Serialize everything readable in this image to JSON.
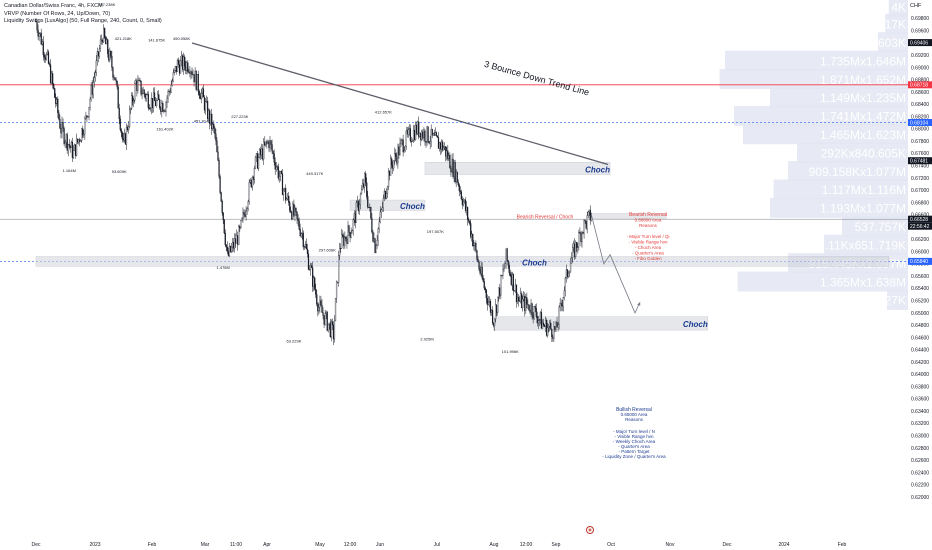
{
  "legend": {
    "line1": "Canadian Dollar/Swiss Franc, 4h, FXCM",
    "line2": "VRVP (Number Of Rows, 24, Up/Down, 70)",
    "line3": "Liquidity Swings [LuxAlgo] (50, Full Range, 240, Count, 0, Small)"
  },
  "currency": "CHF",
  "colors": {
    "up": "#26a69a",
    "down": "#ef5350",
    "candle": "#131722",
    "zone": "#d1d4dc",
    "trendline": "#5d606b",
    "label_blue": "#1a3a8f",
    "label_red": "#e53935",
    "price_badge": "#131722",
    "red_level": "#f23645",
    "blue_dash": "#2962ff",
    "profile_bar": "#e3e6f2",
    "profile_text": "#ffffff",
    "profile_badge": "#2962ff"
  },
  "chart_data": {
    "type": "candlestick",
    "title": "Canadian Dollar/Swiss Franc, 4h, FXCM",
    "y_range": [
      0.613,
      0.701
    ],
    "y_ticks": [
      "0.70000",
      "0.69800",
      "0.69600",
      "0.69400",
      "0.69200",
      "0.69000",
      "0.68800",
      "0.68600",
      "0.68400",
      "0.68200",
      "0.68000",
      "0.67800",
      "0.67600",
      "0.67400",
      "0.67200",
      "0.67000",
      "0.66800",
      "0.66600",
      "0.66400",
      "0.66200",
      "0.66000",
      "0.65800",
      "0.65600",
      "0.65400",
      "0.65200",
      "0.65000",
      "0.64800",
      "0.64600",
      "0.64400",
      "0.64200",
      "0.64000",
      "0.63800",
      "0.63600",
      "0.63400",
      "0.63200",
      "0.63000",
      "0.62800",
      "0.62600",
      "0.62400",
      "0.62200",
      "0.62000"
    ],
    "x_ticks": [
      "Dec",
      "2023",
      "Feb",
      "Mar",
      "11:00",
      "Apr",
      "May",
      "12:00",
      "Jun",
      "Jul",
      "Aug",
      "12:00",
      "Sep",
      "Oct",
      "Nov",
      "Dec",
      "2024",
      "Feb"
    ],
    "price_path": [
      {
        "d": 0,
        "p": 0.6975
      },
      {
        "d": 6,
        "p": 0.6905
      },
      {
        "d": 12,
        "p": 0.68
      },
      {
        "d": 18,
        "p": 0.676
      },
      {
        "d": 24,
        "p": 0.6815
      },
      {
        "d": 32,
        "p": 0.6955
      },
      {
        "d": 38,
        "p": 0.6885
      },
      {
        "d": 42,
        "p": 0.677
      },
      {
        "d": 48,
        "p": 0.6875
      },
      {
        "d": 55,
        "p": 0.6845
      },
      {
        "d": 62,
        "p": 0.684
      },
      {
        "d": 68,
        "p": 0.6905
      },
      {
        "d": 74,
        "p": 0.6905
      },
      {
        "d": 80,
        "p": 0.6852
      },
      {
        "d": 86,
        "p": 0.679
      },
      {
        "d": 92,
        "p": 0.659
      },
      {
        "d": 98,
        "p": 0.663
      },
      {
        "d": 105,
        "p": 0.674
      },
      {
        "d": 112,
        "p": 0.678
      },
      {
        "d": 120,
        "p": 0.669
      },
      {
        "d": 128,
        "p": 0.663
      },
      {
        "d": 136,
        "p": 0.651
      },
      {
        "d": 143,
        "p": 0.6465
      },
      {
        "d": 146,
        "p": 0.661
      },
      {
        "d": 152,
        "p": 0.664
      },
      {
        "d": 158,
        "p": 0.6715
      },
      {
        "d": 163,
        "p": 0.661
      },
      {
        "d": 170,
        "p": 0.6735
      },
      {
        "d": 176,
        "p": 0.6775
      },
      {
        "d": 183,
        "p": 0.68
      },
      {
        "d": 190,
        "p": 0.6785
      },
      {
        "d": 196,
        "p": 0.677
      },
      {
        "d": 202,
        "p": 0.6725
      },
      {
        "d": 208,
        "p": 0.665
      },
      {
        "d": 214,
        "p": 0.656
      },
      {
        "d": 220,
        "p": 0.649
      },
      {
        "d": 226,
        "p": 0.659
      },
      {
        "d": 232,
        "p": 0.652
      },
      {
        "d": 238,
        "p": 0.651
      },
      {
        "d": 244,
        "p": 0.648
      },
      {
        "d": 250,
        "p": 0.647
      },
      {
        "d": 256,
        "p": 0.6575
      },
      {
        "d": 263,
        "p": 0.664
      },
      {
        "d": 267,
        "p": 0.666
      }
    ],
    "projection_path": [
      {
        "d": 267,
        "p": 0.666
      },
      {
        "d": 273,
        "p": 0.658
      },
      {
        "d": 276,
        "p": 0.6595
      },
      {
        "d": 288,
        "p": 0.65
      },
      {
        "d": 290,
        "p": 0.6515
      }
    ],
    "trendline": {
      "from": {
        "d": 75,
        "p": 0.694
      },
      "to": {
        "d": 275,
        "p": 0.6742
      },
      "label": "3 Bounce Down Trend Line"
    },
    "zones": [
      {
        "label": "Choch",
        "top": 0.67455,
        "bottom": 0.67255,
        "from": 187,
        "to": 276
      },
      {
        "label": "Choch",
        "top": 0.6684,
        "bottom": 0.6667,
        "from": 151,
        "to": 187
      },
      {
        "label": "",
        "top": 0.6662,
        "bottom": 0.6654,
        "from": 266,
        "to": 303
      },
      {
        "label": "Choch",
        "top": 0.6592,
        "bottom": 0.6576,
        "from": 0,
        "to": 410
      },
      {
        "label": "Choch",
        "top": 0.6494,
        "bottom": 0.6472,
        "from": 220,
        "to": 323
      }
    ],
    "zone_label_y": {
      "0": 0.67335,
      "1": 0.6674,
      "3": 0.6582,
      "4": 0.6482
    },
    "bearish_note": {
      "title": "Bearish Reversal",
      "lines": [
        "0.66600 Area",
        "Reasons",
        "",
        "- Major Turn level / Qi",
        "- Visible Range hvn",
        "- Choch Area",
        "- Quarter's Area",
        "- Fibo Golden"
      ]
    },
    "bearish_tag": "Bearish Reversal / Choch",
    "bullish_note": {
      "title": "Bullish Reversal",
      "lines": [
        "0.65000 Area",
        "Reasons"
      ]
    },
    "bullish_reasons": [
      "- Major Turn level / N",
      "- Visible Range hvn",
      "- Weekly Choch Area",
      "- Quarter's Area",
      "- Pattern Target",
      "- Liquidity Zone / Quarter's Area"
    ],
    "swing_labels": [
      {
        "text": "357.238K",
        "d": 34,
        "p": 0.7
      },
      {
        "text": "421.218K",
        "d": 42,
        "p": 0.6945
      },
      {
        "text": "141.675K",
        "d": 58,
        "p": 0.6942
      },
      {
        "text": "450.058K",
        "d": 70,
        "p": 0.6945
      },
      {
        "text": "227.223K",
        "d": 98,
        "p": 0.6818
      },
      {
        "text": "412.657K",
        "d": 167,
        "p": 0.6825
      },
      {
        "text": "449.317K",
        "d": 134,
        "p": 0.6725
      },
      {
        "text": "1.164M",
        "d": 16,
        "p": 0.673
      },
      {
        "text": "161.402K",
        "d": 62,
        "p": 0.6797
      },
      {
        "text": "451.814K",
        "d": 80,
        "p": 0.681
      },
      {
        "text": "93.609K",
        "d": 40,
        "p": 0.6728
      },
      {
        "text": "1.476M",
        "d": 90,
        "p": 0.6572
      },
      {
        "text": "297.606K",
        "d": 140,
        "p": 0.66
      },
      {
        "text": "197.507K",
        "d": 192,
        "p": 0.663
      },
      {
        "text": "63.229K",
        "d": 124,
        "p": 0.6452
      },
      {
        "text": "2.025M",
        "d": 188,
        "p": 0.6455
      },
      {
        "text": "101.996K",
        "d": 228,
        "p": 0.6435
      }
    ],
    "badges": [
      {
        "text": "0.69406",
        "p": 0.69406,
        "color": "#131722"
      },
      {
        "text": "0.68718",
        "p": 0.68718,
        "color": "#f23645"
      },
      {
        "text": "0.68104",
        "p": 0.68104,
        "color": "#2962ff"
      },
      {
        "text": "0.67481",
        "p": 0.67481,
        "color": "#131722"
      },
      {
        "text": "0.66528",
        "p": 0.66528,
        "color": "#131722"
      },
      {
        "text": "0.65840",
        "p": 0.6584,
        "color": "#2962ff"
      }
    ],
    "countdown": "22:56:42",
    "volume_profile": [
      {
        "label": "4K",
        "p": 0.6998,
        "w": 0.04
      },
      {
        "label": "17K",
        "p": 0.697,
        "w": 0.06
      },
      {
        "label": "70.603K",
        "p": 0.694,
        "w": 0.1
      },
      {
        "label": "1.735Mx1.646M",
        "p": 0.691,
        "w": 0.95
      },
      {
        "label": "1.871Mx1.652M",
        "p": 0.688,
        "w": 0.98
      },
      {
        "label": "1.149Mx1.235M",
        "p": 0.685,
        "w": 0.7
      },
      {
        "label": "1.741Mx1.472M",
        "p": 0.682,
        "w": 0.9
      },
      {
        "label": "1.465Mx1.623M",
        "p": 0.679,
        "w": 0.85
      },
      {
        "label": "292Kx840.605K",
        "p": 0.676,
        "w": 0.55
      },
      {
        "label": "909.158Kx1.077M",
        "p": 0.673,
        "w": 0.6
      },
      {
        "label": "1.117Mx1.116M",
        "p": 0.67,
        "w": 0.68
      },
      {
        "label": "1.193Mx1.077M",
        "p": 0.667,
        "w": 0.7
      },
      {
        "label": "537.757K",
        "p": 0.664,
        "w": 0.3
      },
      {
        "label": "1.11Kx651.719K",
        "p": 0.661,
        "w": 0.4
      },
      {
        "label": "915.445Kx1.097M",
        "p": 0.658,
        "w": 0.6
      },
      {
        "label": "1.365Mx1.638M",
        "p": 0.655,
        "w": 0.88
      },
      {
        "label": "6.227K",
        "p": 0.652,
        "w": 0.05
      }
    ]
  }
}
